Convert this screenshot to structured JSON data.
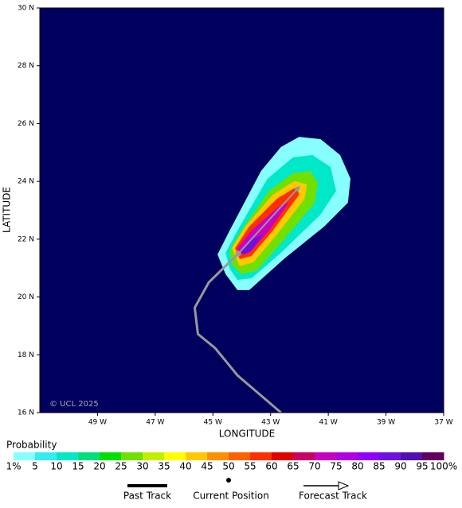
{
  "chart_data": {
    "type": "probability-map",
    "x_label": "LONGITUDE",
    "y_label": "LATITUDE",
    "xlim": [
      -51,
      -37
    ],
    "ylim": [
      16,
      30
    ],
    "xticks": [
      {
        "value": -49,
        "label": "49 W"
      },
      {
        "value": -47,
        "label": "47 W"
      },
      {
        "value": -45,
        "label": "45 W"
      },
      {
        "value": -43,
        "label": "43 W"
      },
      {
        "value": -41,
        "label": "41 W"
      },
      {
        "value": -39,
        "label": "39 W"
      },
      {
        "value": -37,
        "label": "37 W"
      }
    ],
    "yticks": [
      {
        "value": 16,
        "label": "16 N"
      },
      {
        "value": 18,
        "label": "18 N"
      },
      {
        "value": 20,
        "label": "20 N"
      },
      {
        "value": 22,
        "label": "22 N"
      },
      {
        "value": 24,
        "label": "24 N"
      },
      {
        "value": 26,
        "label": "26 N"
      },
      {
        "value": 28,
        "label": "28 N"
      },
      {
        "value": 30,
        "label": "30 N"
      }
    ],
    "background_color": "#00005f",
    "copyright": "© UCL 2025",
    "colorbar": {
      "title": "Probability",
      "ticks": [
        {
          "value": 1,
          "label": "1%"
        },
        5,
        10,
        15,
        20,
        25,
        30,
        35,
        40,
        45,
        50,
        55,
        60,
        65,
        70,
        75,
        80,
        85,
        90,
        95,
        {
          "value": 100,
          "label": "100%"
        }
      ],
      "colors": [
        "#88ffff",
        "#33eeee",
        "#00e8c8",
        "#00e07a",
        "#00e000",
        "#70e000",
        "#c4ee00",
        "#ffff00",
        "#ffc800",
        "#ff9000",
        "#ff6000",
        "#ff3000",
        "#e00000",
        "#c80060",
        "#c800c0",
        "#b000e0",
        "#9000ff",
        "#7010e0",
        "#5010b0",
        "#600060"
      ]
    },
    "contours": [
      {
        "level": 1,
        "lon": [
          -44.84,
          -44.42,
          -43.33,
          -42.64,
          -42.01,
          -41.27,
          -40.59,
          -40.23,
          -40.32,
          -41.14,
          -42.51,
          -43.74,
          -44.15,
          -44.56
        ],
        "lat": [
          21.47,
          22.3,
          24.36,
          25.19,
          25.54,
          25.46,
          24.91,
          24.09,
          23.26,
          22.44,
          21.34,
          20.24,
          20.24,
          20.79
        ]
      },
      {
        "level": 10,
        "lon": [
          -44.56,
          -44.15,
          -43.11,
          -42.23,
          -41.55,
          -40.92,
          -40.73,
          -41.27,
          -42.64,
          -43.66,
          -44.15,
          -44.42
        ],
        "lat": [
          21.53,
          22.3,
          24.09,
          24.83,
          24.91,
          24.5,
          23.67,
          22.85,
          21.53,
          20.65,
          20.59,
          20.98
        ]
      },
      {
        "level": 25,
        "lon": [
          -44.42,
          -44.01,
          -43.05,
          -42.23,
          -41.63,
          -41.36,
          -41.47,
          -42.51,
          -43.47,
          -44.01,
          -44.34
        ],
        "lat": [
          21.61,
          22.3,
          23.67,
          24.28,
          24.36,
          23.95,
          23.26,
          22.02,
          20.92,
          20.79,
          21.12
        ]
      },
      {
        "level": 40,
        "lon": [
          -44.34,
          -43.88,
          -42.92,
          -42.18,
          -41.74,
          -41.82,
          -42.78,
          -43.6,
          -44.07
        ],
        "lat": [
          21.69,
          22.44,
          23.54,
          24.01,
          23.9,
          23.4,
          22.16,
          21.2,
          21.06
        ]
      },
      {
        "level": 55,
        "lon": [
          -44.23,
          -43.74,
          -42.78,
          -42.1,
          -42.01,
          -42.92,
          -43.66,
          -44.07
        ],
        "lat": [
          21.69,
          22.44,
          23.4,
          23.81,
          23.54,
          22.3,
          21.42,
          21.31
        ]
      },
      {
        "level": 70,
        "lon": [
          -44.15,
          -43.66,
          -42.73,
          -42.37,
          -43.05,
          -43.74,
          -44.01
        ],
        "lat": [
          21.69,
          22.3,
          23.12,
          23.26,
          22.3,
          21.53,
          21.47
        ]
      },
      {
        "level": 85,
        "lon": [
          -44.07,
          -43.6,
          -43.27,
          -43.66,
          -43.93
        ],
        "lat": [
          21.61,
          22.02,
          22.16,
          21.61,
          21.47
        ]
      }
    ],
    "past_track": {
      "name": "Past Track",
      "color": "#999999",
      "lon": [
        -42.64,
        -44.15,
        -44.92,
        -45.52,
        -45.63,
        -45.14,
        -44.12
      ],
      "lat": [
        16.0,
        17.29,
        18.23,
        18.72,
        19.63,
        20.51,
        21.5
      ]
    },
    "current_position": {
      "name": "Current Position",
      "lon": -44.12,
      "lat": 21.5
    },
    "forecast_track": {
      "name": "Forecast Track",
      "color": "#999999",
      "lon": [
        -44.12,
        -42.01
      ],
      "lat": [
        21.5,
        23.81
      ]
    }
  }
}
